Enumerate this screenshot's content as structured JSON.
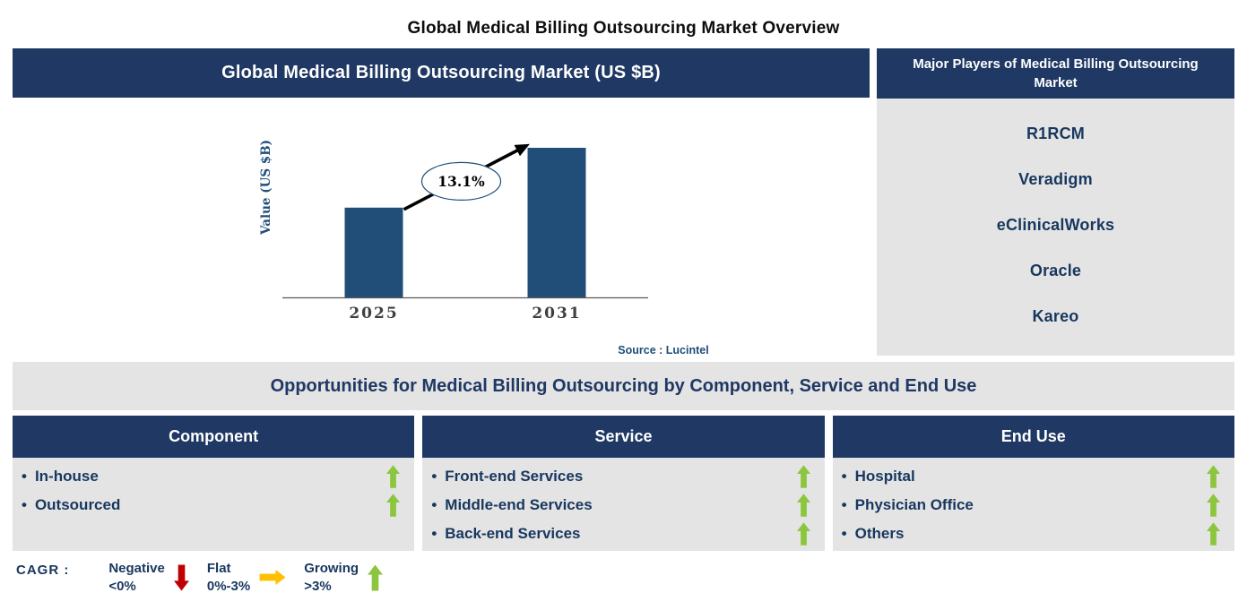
{
  "page_title": "Global Medical Billing Outsourcing Market Overview",
  "colors": {
    "navy": "#1F3864",
    "bar_blue": "#204E79",
    "panel_gray": "#E4E4E4",
    "text_navy": "#17375E",
    "tick_gray": "#3F3F3F",
    "source_blue": "#1F4E79",
    "green": "#8CC63F",
    "red": "#C00000",
    "amber": "#FFC000",
    "arrow_black": "#000000"
  },
  "chart_panel": {
    "header": "Global Medical Billing Outsourcing Market (US $B)"
  },
  "chart_data": {
    "type": "bar",
    "title": "Global Medical Billing Outsourcing Market (US $B)",
    "categories": [
      "2025",
      "2031"
    ],
    "values": [
      0.6,
      1.0
    ],
    "values_note": "relative bar heights; no numeric y-axis scale shown",
    "xlabel": "",
    "ylabel": "Value (US $B)",
    "annotation": "13.1%",
    "source": "Source : Lucintel",
    "grid": false,
    "legend_position": "none"
  },
  "players_panel": {
    "header": "Major Players of Medical Billing Outsourcing Market",
    "players": [
      "R1RCM",
      "Veradigm",
      "eClinicalWorks",
      "Oracle",
      "Kareo"
    ]
  },
  "opportunities": {
    "title": "Opportunities for Medical Billing Outsourcing by Component, Service and End Use",
    "columns": [
      {
        "header": "Component",
        "items": [
          {
            "label": "In-house",
            "trend": "growing",
            "icon": "up-arrow-icon"
          },
          {
            "label": "Outsourced",
            "trend": "growing",
            "icon": "up-arrow-icon"
          }
        ]
      },
      {
        "header": "Service",
        "items": [
          {
            "label": "Front-end Services",
            "trend": "growing",
            "icon": "up-arrow-icon"
          },
          {
            "label": "Middle-end Services",
            "trend": "growing",
            "icon": "up-arrow-icon"
          },
          {
            "label": "Back-end Services",
            "trend": "growing",
            "icon": "up-arrow-icon"
          }
        ]
      },
      {
        "header": "End Use",
        "items": [
          {
            "label": "Hospital",
            "trend": "growing",
            "icon": "up-arrow-icon"
          },
          {
            "label": "Physician Office",
            "trend": "growing",
            "icon": "up-arrow-icon"
          },
          {
            "label": "Others",
            "trend": "growing",
            "icon": "up-arrow-icon"
          }
        ]
      }
    ]
  },
  "legend": {
    "label": "CAGR :",
    "entries": [
      {
        "name": "Negative",
        "range": "<0%",
        "icon": "down-arrow-icon",
        "color": "#C00000"
      },
      {
        "name": "Flat",
        "range": "0%-3%",
        "icon": "right-arrow-icon",
        "color": "#FFC000"
      },
      {
        "name": "Growing",
        "range": ">3%",
        "icon": "up-arrow-icon",
        "color": "#8CC63F"
      }
    ]
  }
}
